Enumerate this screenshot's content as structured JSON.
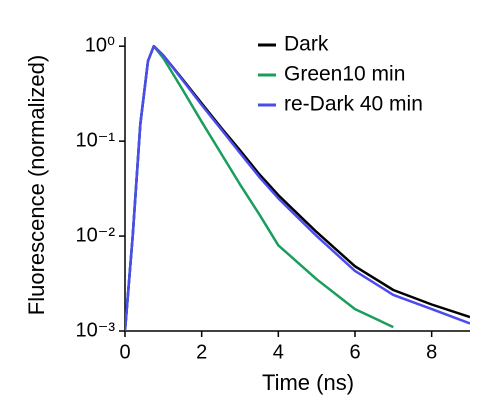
{
  "chart_data": {
    "type": "line",
    "xlabel": "Time (ns)",
    "ylabel": "Fluorescence (normalized)",
    "x": [
      0,
      0.2,
      0.4,
      0.6,
      0.75,
      1,
      1.5,
      2,
      2.5,
      3,
      3.5,
      4,
      5,
      6,
      7,
      8,
      9
    ],
    "series": [
      {
        "name": "Dark",
        "color": "#000000",
        "values": [
          0.001,
          0.01,
          0.15,
          0.7,
          1.0,
          0.8,
          0.45,
          0.25,
          0.14,
          0.08,
          0.045,
          0.027,
          0.011,
          0.0048,
          0.0027,
          0.0019,
          0.0014
        ]
      },
      {
        "name": "Green10 min",
        "color": "#1a9e5c",
        "values": [
          0.001,
          0.01,
          0.15,
          0.7,
          1.0,
          0.75,
          0.35,
          0.16,
          0.075,
          0.035,
          0.017,
          0.008,
          0.0035,
          0.0017,
          0.0011,
          null,
          null
        ]
      },
      {
        "name": "re-Dark 40 min",
        "color": "#4b4bf0",
        "values": [
          0.001,
          0.01,
          0.15,
          0.7,
          1.0,
          0.8,
          0.44,
          0.24,
          0.135,
          0.075,
          0.042,
          0.025,
          0.01,
          0.0043,
          0.0024,
          0.0017,
          0.0012
        ]
      }
    ],
    "xlim": [
      0,
      9
    ],
    "xticks": [
      0,
      2,
      4,
      6,
      8
    ],
    "ylim": [
      0.001,
      1.25
    ],
    "log_y": true,
    "yticks": [
      {
        "value": 1,
        "label": "10⁰"
      },
      {
        "value": 0.1,
        "label": "10⁻¹"
      },
      {
        "value": 0.01,
        "label": "10⁻²"
      },
      {
        "value": 0.001,
        "label": "10⁻³"
      }
    ],
    "legend": "upper right"
  }
}
